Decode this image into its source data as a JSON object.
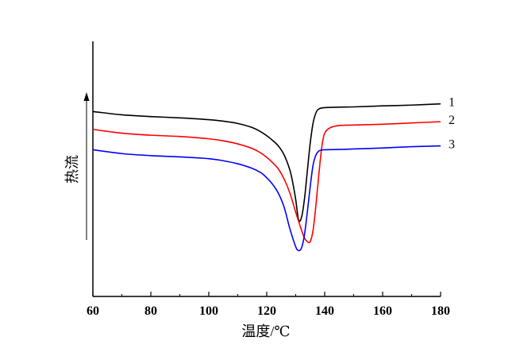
{
  "chart_data": {
    "type": "line",
    "xlabel": "温度/℃",
    "ylabel": "热流",
    "xlim": [
      60,
      180
    ],
    "xticks": [
      "60",
      "80",
      "100",
      "120",
      "140",
      "160",
      "180"
    ],
    "yticks_shown": false,
    "ylim": [
      0,
      10
    ],
    "grid": false,
    "legend": "inline labels at right end of curves",
    "series": [
      {
        "name": "1",
        "color": "#000000",
        "x": [
          60,
          70,
          80,
          90,
          100,
          105,
          110,
          115,
          118,
          120,
          122,
          124,
          126,
          128,
          129,
          130,
          131,
          132,
          133,
          134,
          135,
          136,
          137,
          138,
          140,
          145,
          150,
          160,
          170,
          180
        ],
        "y": [
          7.25,
          7.12,
          7.05,
          7.0,
          6.93,
          6.87,
          6.78,
          6.62,
          6.45,
          6.3,
          6.12,
          5.9,
          5.55,
          4.95,
          4.45,
          3.8,
          3.0,
          3.1,
          3.8,
          4.9,
          6.0,
          6.8,
          7.2,
          7.35,
          7.4,
          7.42,
          7.43,
          7.47,
          7.5,
          7.55
        ]
      },
      {
        "name": "2",
        "color": "#ff0000",
        "x": [
          60,
          70,
          80,
          90,
          100,
          105,
          110,
          115,
          118,
          120,
          122,
          124,
          126,
          128,
          130,
          132,
          133,
          134,
          135,
          136,
          137,
          138,
          139,
          140,
          142,
          145,
          150,
          160,
          170,
          180
        ],
        "y": [
          6.55,
          6.4,
          6.32,
          6.27,
          6.18,
          6.1,
          5.98,
          5.8,
          5.62,
          5.45,
          5.25,
          5.0,
          4.6,
          4.05,
          3.3,
          2.6,
          2.3,
          2.15,
          2.15,
          2.6,
          3.6,
          4.8,
          5.85,
          6.4,
          6.62,
          6.7,
          6.72,
          6.75,
          6.8,
          6.85
        ]
      },
      {
        "name": "3",
        "color": "#0000ff",
        "x": [
          60,
          70,
          80,
          90,
          100,
          105,
          110,
          115,
          118,
          120,
          122,
          124,
          126,
          128,
          130,
          131,
          132,
          133,
          134,
          135,
          136,
          137,
          138,
          139,
          140,
          145,
          150,
          160,
          170,
          180
        ],
        "y": [
          5.75,
          5.6,
          5.52,
          5.47,
          5.4,
          5.32,
          5.2,
          5.02,
          4.85,
          4.65,
          4.4,
          4.05,
          3.5,
          2.65,
          1.95,
          1.8,
          1.9,
          2.4,
          3.3,
          4.3,
          5.15,
          5.55,
          5.7,
          5.74,
          5.75,
          5.76,
          5.78,
          5.82,
          5.87,
          5.9
        ]
      }
    ]
  }
}
